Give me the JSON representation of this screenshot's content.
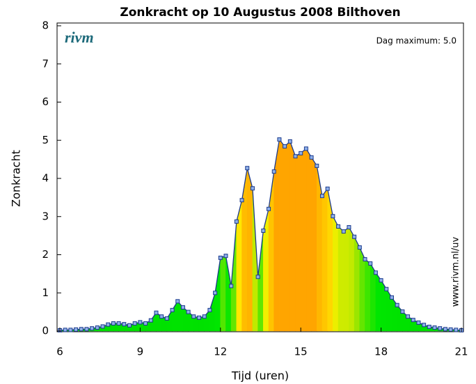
{
  "chart_data": {
    "type": "area",
    "title": "Zonkracht op 10 Augustus 2008 Bilthoven",
    "annotation": "Dag maximum: 5.0",
    "logo": "rivm",
    "side_text": "www.rivm.nl/uv",
    "xlabel": "Tijd (uren)",
    "ylabel": "Zonkracht",
    "x": [
      6,
      6.2,
      6.4,
      6.6,
      6.8,
      7,
      7.2,
      7.4,
      7.6,
      7.8,
      8,
      8.2,
      8.4,
      8.6,
      8.8,
      9,
      9.2,
      9.4,
      9.6,
      9.8,
      10,
      10.2,
      10.4,
      10.6,
      10.8,
      11,
      11.2,
      11.4,
      11.6,
      11.8,
      12,
      12.2,
      12.4,
      12.6,
      12.8,
      13,
      13.2,
      13.4,
      13.6,
      13.8,
      14,
      14.2,
      14.4,
      14.6,
      14.8,
      15,
      15.2,
      15.4,
      15.6,
      15.8,
      16,
      16.2,
      16.4,
      16.6,
      16.8,
      17,
      17.2,
      17.4,
      17.6,
      17.8,
      18,
      18.2,
      18.4,
      18.6,
      18.8,
      19,
      19.2,
      19.4,
      19.6,
      19.8,
      20,
      20.2,
      20.4,
      20.6,
      20.8,
      21
    ],
    "series": [
      {
        "name": "Zonkracht",
        "color": "#1c3a8c",
        "values": [
          0.02,
          0.03,
          0.03,
          0.04,
          0.05,
          0.05,
          0.07,
          0.09,
          0.12,
          0.17,
          0.2,
          0.2,
          0.18,
          0.15,
          0.2,
          0.23,
          0.2,
          0.28,
          0.48,
          0.38,
          0.33,
          0.55,
          0.78,
          0.62,
          0.5,
          0.38,
          0.35,
          0.38,
          0.55,
          1.0,
          1.92,
          1.97,
          1.18,
          2.87,
          3.43,
          4.27,
          3.74,
          1.42,
          2.63,
          3.2,
          4.18,
          5.02,
          4.84,
          4.97,
          4.58,
          4.66,
          4.78,
          4.55,
          4.33,
          3.54,
          3.73,
          3.01,
          2.74,
          2.61,
          2.72,
          2.47,
          2.19,
          1.88,
          1.77,
          1.53,
          1.33,
          1.1,
          0.88,
          0.68,
          0.51,
          0.38,
          0.29,
          0.22,
          0.16,
          0.11,
          0.09,
          0.07,
          0.05,
          0.04,
          0.03,
          0.02
        ]
      }
    ],
    "xlim": [
      6,
      21
    ],
    "ylim": [
      0,
      8
    ],
    "xticks": [
      6,
      9,
      12,
      15,
      18,
      21
    ],
    "yticks": [
      0,
      1,
      2,
      3,
      4,
      5,
      6,
      7,
      8
    ]
  }
}
